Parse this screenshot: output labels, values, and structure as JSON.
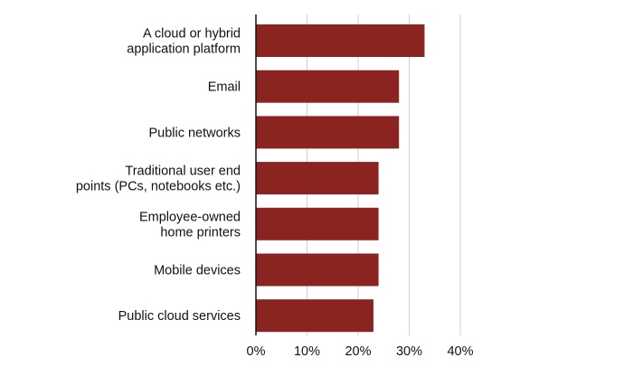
{
  "chart_data": {
    "type": "bar",
    "orientation": "horizontal",
    "title": "",
    "xlabel": "",
    "ylabel": "",
    "categories": [
      [
        "A cloud or hybrid",
        "application platform"
      ],
      [
        "Email"
      ],
      [
        "Public networks"
      ],
      [
        "Traditional user end",
        "points (PCs, notebooks etc.)"
      ],
      [
        "Employee-owned",
        "home printers"
      ],
      [
        "Mobile devices"
      ],
      [
        "Public cloud services"
      ]
    ],
    "values": [
      33,
      28,
      28,
      24,
      24,
      24,
      23
    ],
    "xlim": [
      0,
      40
    ],
    "x_ticks": [
      0,
      10,
      20,
      30,
      40
    ],
    "x_tick_labels": [
      "0%",
      "10%",
      "20%",
      "30%",
      "40%"
    ],
    "grid": "vertical",
    "legend": "none",
    "bar_color": "#8b2420",
    "grid_color": "#cfcfcf",
    "axis_color": "#111111"
  }
}
